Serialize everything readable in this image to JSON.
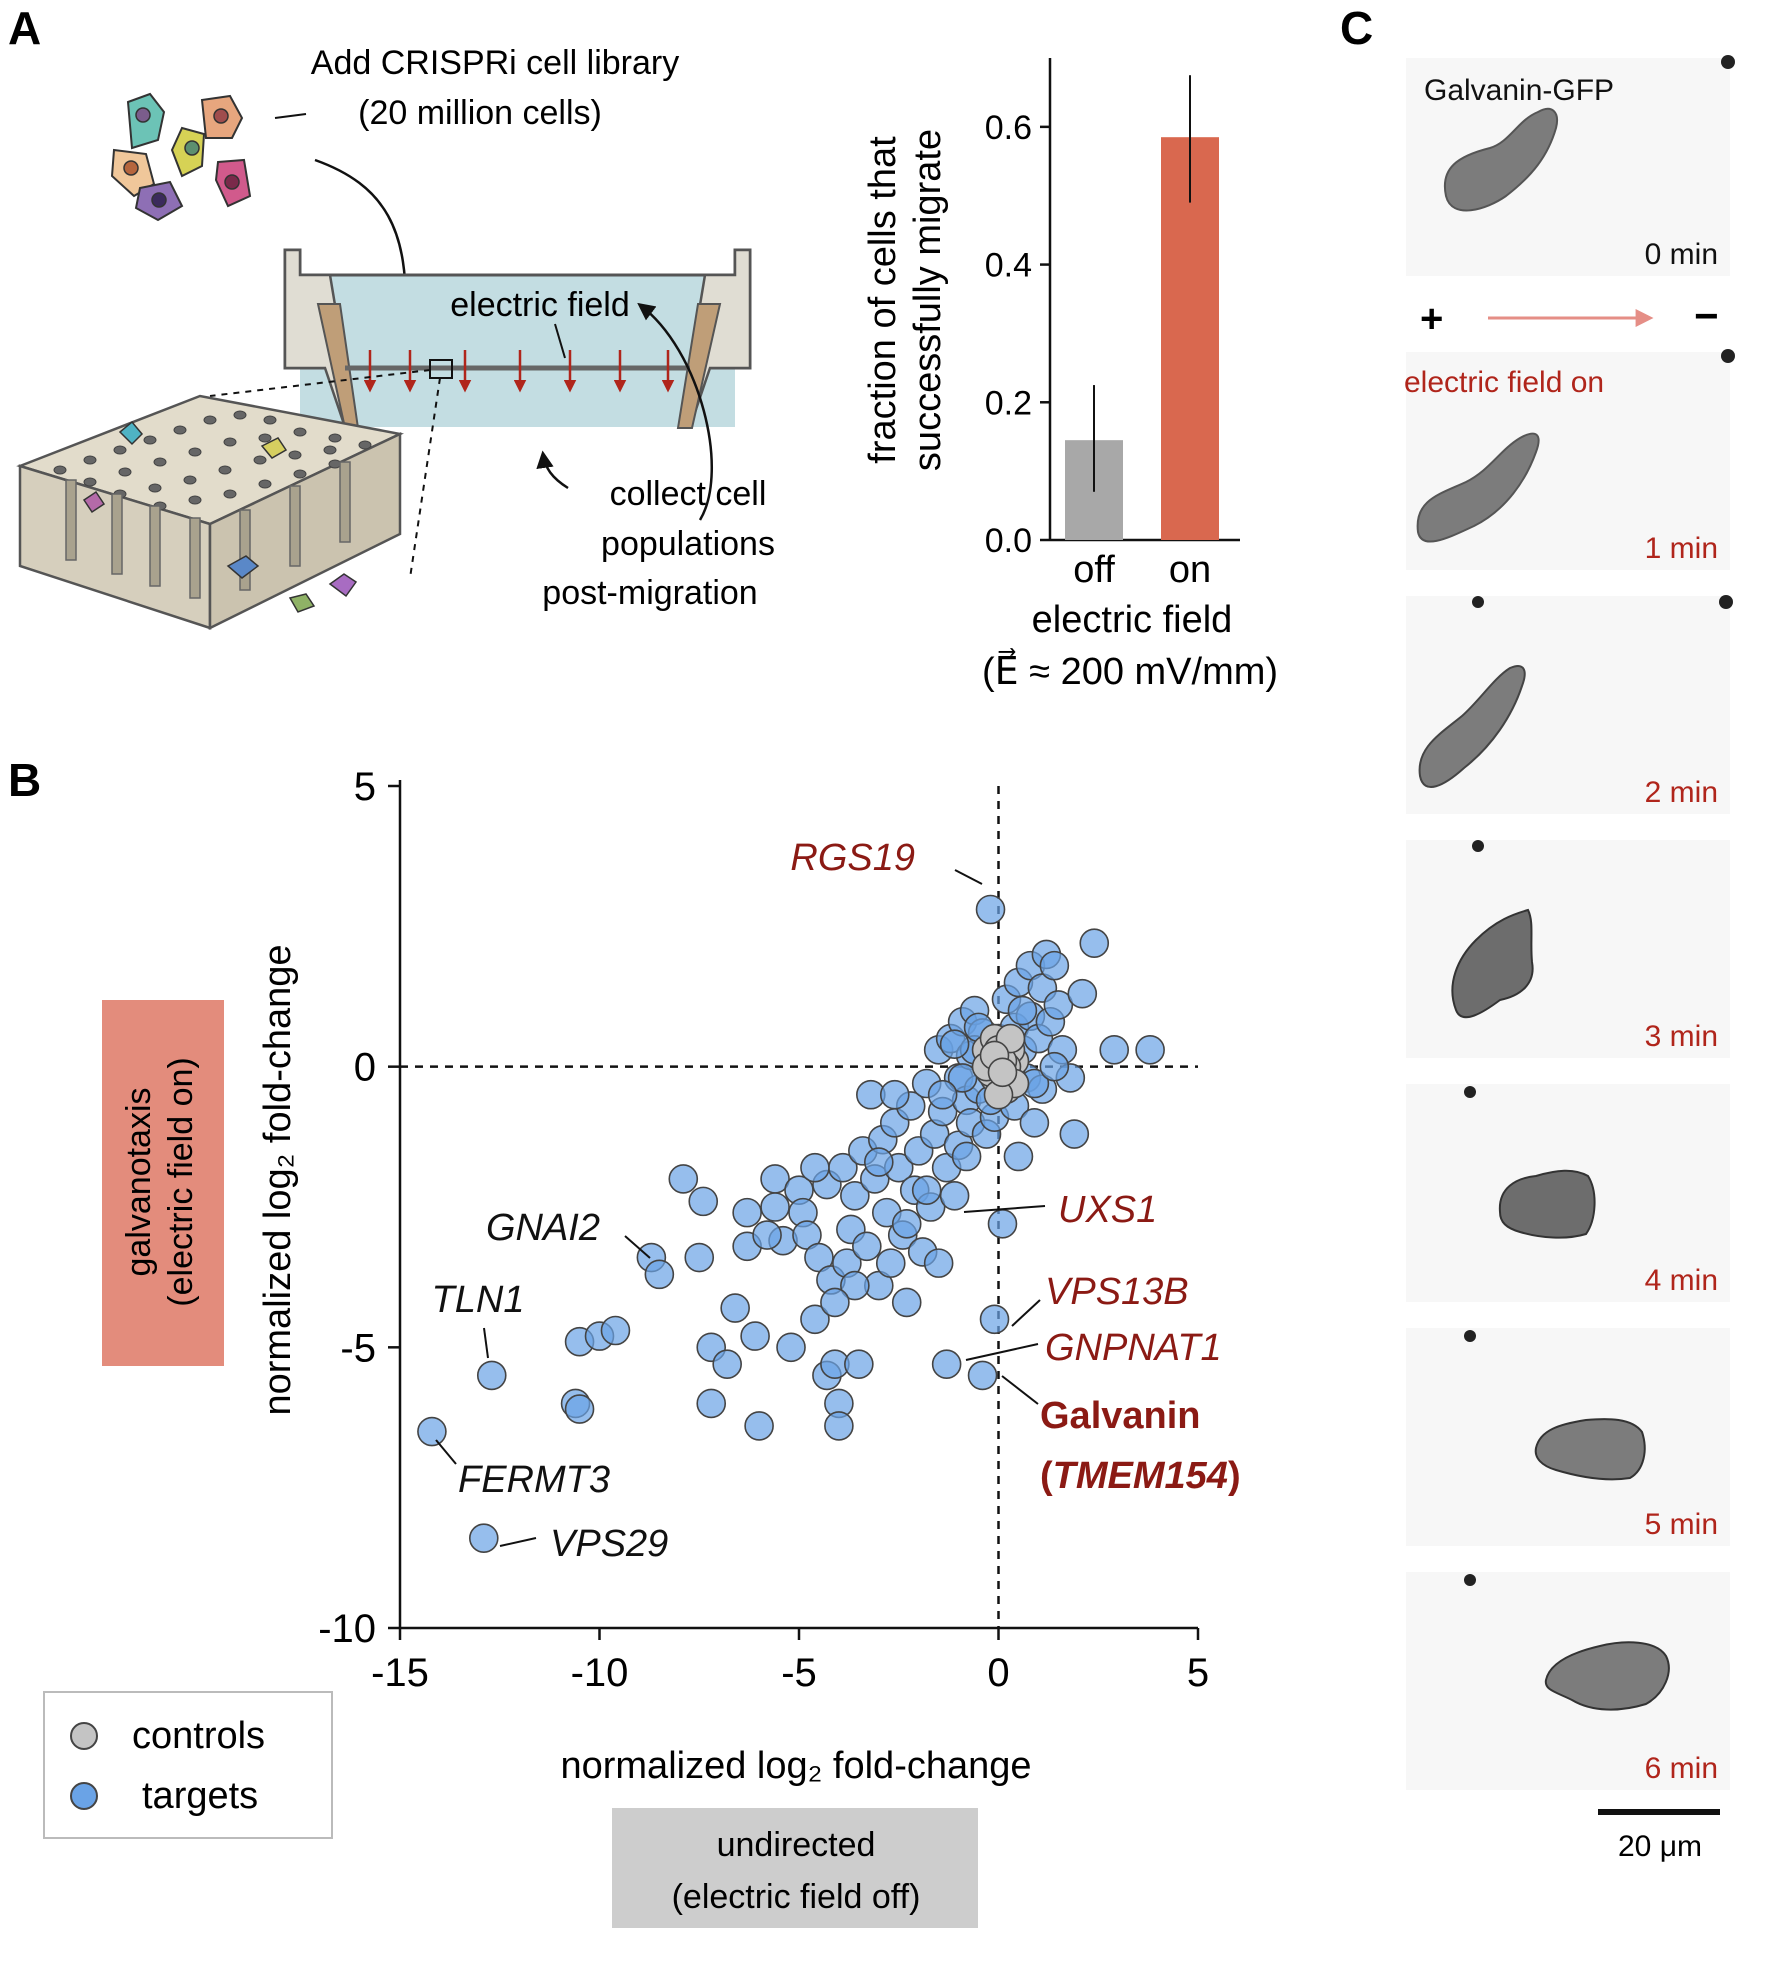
{
  "panel_labels": {
    "a": "A",
    "b": "B",
    "c": "C"
  },
  "panel_a": {
    "add_library_line1": "Add CRISPRi cell library",
    "add_library_line2": "(20 million cells)",
    "electric_field": "electric field",
    "collect_line1": "collect cell",
    "collect_line2": "populations",
    "collect_line3": "post-migration"
  },
  "chart_data": [
    {
      "type": "bar",
      "panel": "A",
      "categories": [
        "off",
        "on"
      ],
      "values": [
        0.145,
        0.585
      ],
      "error_low": [
        0.07,
        0.49
      ],
      "error_high": [
        0.225,
        0.675
      ],
      "colors": [
        "#a8a8a8",
        "#d9684f"
      ],
      "ylabel_line1": "fraction of cells that",
      "ylabel_line2": "successfully migrate",
      "xlabel_line1": "electric field",
      "xlabel_line2": "(E⃗ ≈ 200 mV/mm)",
      "yticks": [
        "0.0",
        "0.2",
        "0.4",
        "0.6"
      ],
      "ytick_values": [
        0,
        0.2,
        0.4,
        0.6
      ],
      "ylim": [
        0,
        0.7
      ]
    },
    {
      "type": "scatter",
      "panel": "B",
      "xlim": [
        -15,
        5
      ],
      "ylim": [
        -10,
        5
      ],
      "xticks": [
        "-15",
        "-10",
        "-5",
        "0",
        "5"
      ],
      "xtick_values": [
        -15,
        -10,
        -5,
        0,
        5
      ],
      "yticks": [
        "5",
        "0",
        "-5",
        "-10"
      ],
      "ytick_values": [
        5,
        0,
        -5,
        -10
      ],
      "xlabel": "normalized log₂ fold-change",
      "ylabel": "normalized log₂ fold-change",
      "xcond_line1": "undirected",
      "xcond_line2": "(electric field off)",
      "ycond_line1": "galvanotaxis",
      "ycond_line2": "(electric field on)",
      "colors": {
        "targets": "#6aa3e6",
        "controls": "#c4c4c4",
        "edge": "#444444",
        "highlight": "#8b1a14"
      },
      "legend": [
        {
          "name": "controls",
          "color": "#c4c4c4"
        },
        {
          "name": "targets",
          "color": "#6aa3e6"
        }
      ],
      "legend_position": "bottom-left",
      "series": [
        {
          "name": "targets",
          "points": [
            [
              -14.2,
              -6.5
            ],
            [
              -12.9,
              -8.4
            ],
            [
              -12.7,
              -5.5
            ],
            [
              -10.6,
              -6.0
            ],
            [
              -10.5,
              -6.1
            ],
            [
              -10.5,
              -4.9
            ],
            [
              -10.0,
              -4.8
            ],
            [
              -9.6,
              -4.7
            ],
            [
              -8.7,
              -3.4
            ],
            [
              -8.5,
              -3.7
            ],
            [
              -7.9,
              -2.0
            ],
            [
              -7.5,
              -3.4
            ],
            [
              -7.2,
              -5.0
            ],
            [
              -7.4,
              -2.4
            ],
            [
              -7.2,
              -6.0
            ],
            [
              -6.8,
              -5.3
            ],
            [
              -6.6,
              -4.3
            ],
            [
              -6.3,
              -2.6
            ],
            [
              -6.3,
              -3.2
            ],
            [
              -6.1,
              -4.8
            ],
            [
              -6.0,
              -6.4
            ],
            [
              -5.6,
              -2.0
            ],
            [
              -5.6,
              -2.5
            ],
            [
              -5.4,
              -3.1
            ],
            [
              -5.2,
              -5.0
            ],
            [
              -5.0,
              -2.2
            ],
            [
              -4.9,
              -2.6
            ],
            [
              -4.8,
              -3.0
            ],
            [
              -4.6,
              -4.5
            ],
            [
              -4.5,
              -3.4
            ],
            [
              -4.3,
              -2.1
            ],
            [
              -4.3,
              -5.5
            ],
            [
              -4.2,
              -3.8
            ],
            [
              -4.1,
              -5.3
            ],
            [
              -4.0,
              -6.0
            ],
            [
              -4.0,
              -6.4
            ],
            [
              -3.9,
              -1.8
            ],
            [
              -3.8,
              -3.5
            ],
            [
              -3.7,
              -2.9
            ],
            [
              -3.6,
              -2.3
            ],
            [
              -3.5,
              -5.3
            ],
            [
              -3.4,
              -1.5
            ],
            [
              -3.3,
              -3.2
            ],
            [
              -3.2,
              -0.5
            ],
            [
              -3.1,
              -2.0
            ],
            [
              -3.0,
              -3.9
            ],
            [
              -2.9,
              -1.3
            ],
            [
              -2.8,
              -2.6
            ],
            [
              -2.7,
              -3.5
            ],
            [
              -2.6,
              -1.0
            ],
            [
              -2.5,
              -1.8
            ],
            [
              -2.4,
              -3.0
            ],
            [
              -2.3,
              -4.2
            ],
            [
              -2.2,
              -0.7
            ],
            [
              -2.1,
              -2.2
            ],
            [
              -2.0,
              -1.5
            ],
            [
              -1.9,
              -3.3
            ],
            [
              -1.8,
              -0.3
            ],
            [
              -1.7,
              -2.5
            ],
            [
              -1.6,
              -1.2
            ],
            [
              -1.5,
              0.3
            ],
            [
              -1.5,
              -3.5
            ],
            [
              -1.4,
              -0.8
            ],
            [
              -1.3,
              -1.8
            ],
            [
              -1.3,
              -5.3
            ],
            [
              -1.2,
              0.5
            ],
            [
              -1.1,
              -2.3
            ],
            [
              -1.0,
              -0.2
            ],
            [
              -1.0,
              -1.4
            ],
            [
              -0.9,
              0.8
            ],
            [
              -0.8,
              -0.6
            ],
            [
              -0.7,
              0.2
            ],
            [
              -0.7,
              -1.0
            ],
            [
              -0.6,
              1.0
            ],
            [
              -0.5,
              -0.4
            ],
            [
              -0.4,
              0.6
            ],
            [
              -0.4,
              -5.5
            ],
            [
              -0.3,
              -1.2
            ],
            [
              -0.2,
              2.8
            ],
            [
              -0.2,
              0.1
            ],
            [
              -0.1,
              -4.5
            ],
            [
              -0.1,
              -0.9
            ],
            [
              0.0,
              0.5
            ],
            [
              0.1,
              -2.8
            ],
            [
              0.1,
              -0.3
            ],
            [
              0.2,
              1.2
            ],
            [
              0.3,
              0.0
            ],
            [
              0.4,
              0.7
            ],
            [
              0.4,
              -0.7
            ],
            [
              0.5,
              -1.6
            ],
            [
              0.5,
              1.5
            ],
            [
              0.6,
              0.3
            ],
            [
              0.7,
              -0.2
            ],
            [
              0.8,
              1.8
            ],
            [
              0.8,
              0.9
            ],
            [
              0.9,
              -1.0
            ],
            [
              1.0,
              0.5
            ],
            [
              1.1,
              1.4
            ],
            [
              1.1,
              -0.4
            ],
            [
              1.2,
              2.0
            ],
            [
              1.3,
              0.8
            ],
            [
              1.4,
              1.8
            ],
            [
              1.5,
              1.1
            ],
            [
              1.6,
              0.3
            ],
            [
              1.8,
              -0.2
            ],
            [
              1.9,
              -1.2
            ],
            [
              2.1,
              1.3
            ],
            [
              2.4,
              2.2
            ],
            [
              2.9,
              0.3
            ],
            [
              3.8,
              0.3
            ],
            [
              -0.6,
              0.3
            ],
            [
              -0.9,
              -0.2
            ],
            [
              -1.1,
              0.4
            ],
            [
              -0.2,
              -0.6
            ],
            [
              0.6,
              1.0
            ],
            [
              -0.5,
              0.7
            ],
            [
              0.9,
              -0.3
            ],
            [
              -1.4,
              -0.5
            ],
            [
              1.4,
              0.0
            ],
            [
              -2.6,
              -0.5
            ],
            [
              -3.0,
              -1.7
            ],
            [
              -2.3,
              -2.8
            ],
            [
              -3.6,
              -3.9
            ],
            [
              -4.6,
              -1.8
            ],
            [
              -1.8,
              -2.2
            ],
            [
              -0.8,
              -1.6
            ],
            [
              -5.8,
              -3.0
            ],
            [
              -4.1,
              -4.2
            ]
          ]
        },
        {
          "name": "controls",
          "points": [
            [
              -0.2,
              0.1
            ],
            [
              0.0,
              0.0
            ],
            [
              0.2,
              0.2
            ],
            [
              -0.1,
              -0.2
            ],
            [
              0.1,
              0.4
            ],
            [
              0.3,
              -0.1
            ],
            [
              -0.3,
              0.3
            ],
            [
              0.1,
              -0.3
            ],
            [
              0.4,
              0.1
            ],
            [
              -0.1,
              0.5
            ],
            [
              0.2,
              -0.4
            ],
            [
              0.0,
              0.3
            ],
            [
              0.3,
              0.3
            ],
            [
              -0.2,
              -0.1
            ],
            [
              0.2,
              0.0
            ],
            [
              0.1,
              0.1
            ],
            [
              -0.3,
              0.0
            ],
            [
              0.4,
              -0.3
            ],
            [
              0.0,
              -0.5
            ],
            [
              0.3,
              0.5
            ],
            [
              -0.1,
              0.2
            ],
            [
              0.1,
              -0.1
            ]
          ]
        }
      ],
      "annotations": [
        {
          "label": "RGS19",
          "italic": true,
          "color": "#8b1a14"
        },
        {
          "label": "GNAI2",
          "italic": true,
          "color": "#111111"
        },
        {
          "label": "TLN1",
          "italic": true,
          "color": "#111111"
        },
        {
          "label": "FERMT3",
          "italic": true,
          "color": "#111111"
        },
        {
          "label": "VPS29",
          "italic": true,
          "color": "#111111"
        },
        {
          "label": "UXS1",
          "italic": true,
          "color": "#8b1a14"
        },
        {
          "label": "VPS13B",
          "italic": true,
          "color": "#8b1a14"
        },
        {
          "label": "GNPNAT1",
          "italic": true,
          "color": "#8b1a14"
        }
      ],
      "galvanin_line1": "Galvanin",
      "galvanin_line2_pre": "(",
      "galvanin_line2_gene": "TMEM154",
      "galvanin_line2_post": ")"
    }
  ],
  "panel_c": {
    "title": "Galvanin-GFP",
    "plus": "+",
    "minus": "−",
    "field_on": "electric field on",
    "frames": [
      "0 min",
      "1 min",
      "2 min",
      "3 min",
      "4 min",
      "5 min",
      "6 min"
    ],
    "scalebar": "20 μm",
    "timestamp_color": "#b0251b"
  }
}
